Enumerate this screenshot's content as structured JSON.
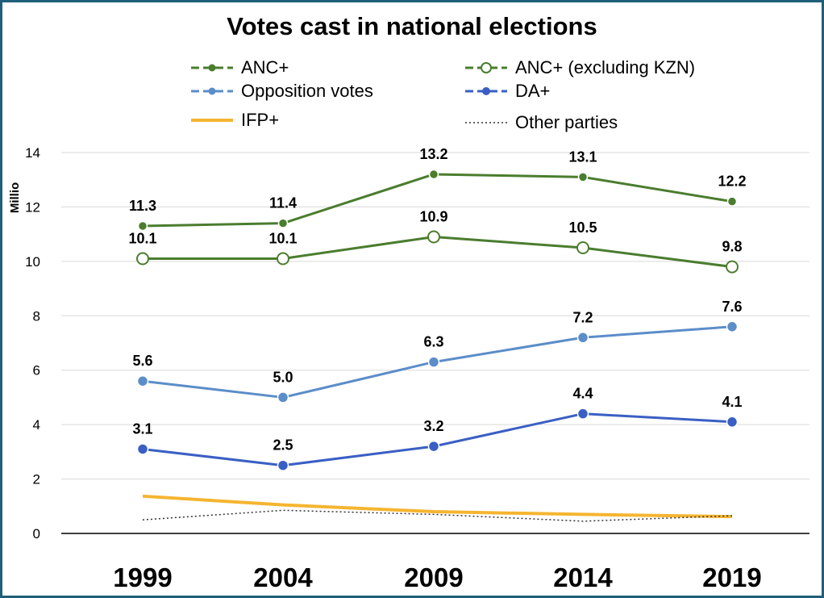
{
  "chart_data": {
    "type": "line",
    "title": "Votes cast in national elections",
    "ylabel": "Millio",
    "xlabel": "",
    "categories": [
      "1999",
      "2004",
      "2009",
      "2014",
      "2019"
    ],
    "ylim": [
      0,
      14
    ],
    "yticks": [
      "0",
      "2",
      "4",
      "6",
      "8",
      "10",
      "12",
      "14"
    ],
    "grid": true,
    "legend_position": "top",
    "series": [
      {
        "name": "ANC+",
        "key": "anc",
        "values": [
          11.3,
          11.4,
          13.2,
          13.1,
          12.2
        ],
        "labels": [
          "11.3",
          "11.4",
          "13.2",
          "13.1",
          "12.2"
        ],
        "color": "#4a7d2e",
        "style": "dash-dot",
        "marker": "filled"
      },
      {
        "name": "ANC+ (excluding KZN)",
        "key": "anc_ex",
        "values": [
          10.1,
          10.1,
          10.9,
          10.5,
          9.8
        ],
        "labels": [
          "10.1",
          "10.1",
          "10.9",
          "10.5",
          "9.8"
        ],
        "color": "#4a7d2e",
        "style": "solid",
        "marker": "hollow"
      },
      {
        "name": "Opposition votes",
        "key": "opp",
        "values": [
          5.6,
          5.0,
          6.3,
          7.2,
          7.6
        ],
        "labels": [
          "5.6",
          "5.0",
          "6.3",
          "7.2",
          "7.6"
        ],
        "color": "#5b8dc9",
        "style": "solid",
        "marker": "filled"
      },
      {
        "name": "DA+",
        "key": "da",
        "values": [
          3.1,
          2.5,
          3.2,
          4.4,
          4.1
        ],
        "labels": [
          "3.1",
          "2.5",
          "3.2",
          "4.4",
          "4.1"
        ],
        "color": "#3a5fc4",
        "style": "solid",
        "marker": "filled"
      },
      {
        "name": "IFP+",
        "key": "ifp",
        "values": [
          1.37,
          1.05,
          0.8,
          0.7,
          0.62
        ],
        "labels": [],
        "color": "#f5b531",
        "style": "solid",
        "marker": "none"
      },
      {
        "name": "Other parties",
        "key": "oth",
        "values": [
          0.5,
          0.85,
          0.7,
          0.45,
          0.65
        ],
        "labels": [],
        "color": "#333333",
        "style": "dotted",
        "marker": "none"
      }
    ]
  }
}
